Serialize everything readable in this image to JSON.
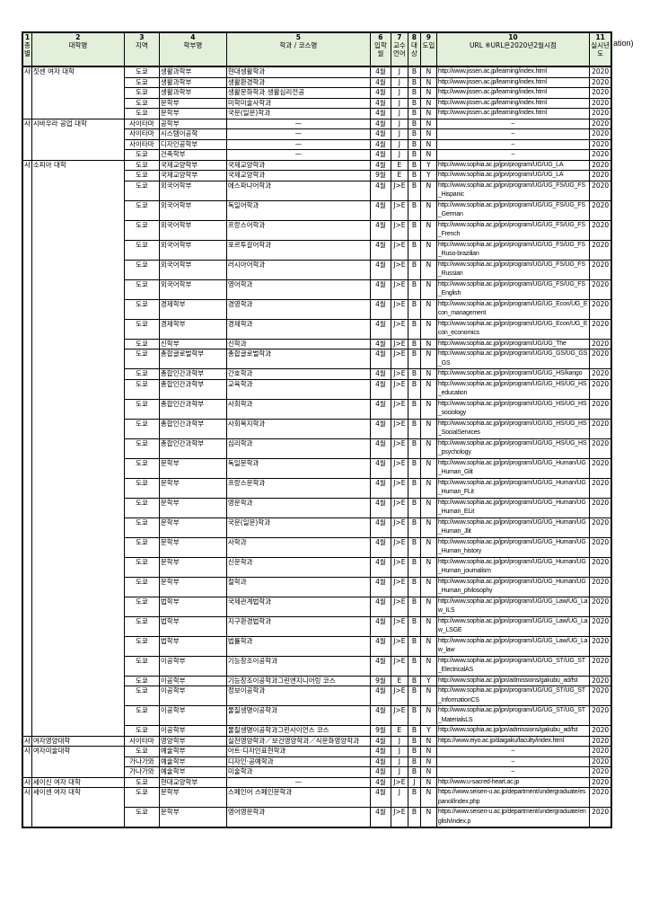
{
  "header": {
    "cols": [
      {
        "num": "1",
        "label": "종별"
      },
      {
        "num": "2",
        "label": "대학명"
      },
      {
        "num": "3",
        "label": "지역"
      },
      {
        "num": "4",
        "label": "학부명"
      },
      {
        "num": "5",
        "label": "학과 / 코스명"
      },
      {
        "num": "6",
        "label": "입학월"
      },
      {
        "num": "7",
        "label": "교수언어"
      },
      {
        "num": "8",
        "label": "대상"
      },
      {
        "num": "9",
        "label": "도입"
      },
      {
        "num": "10",
        "label": "URL ※URL은2020년2월시점"
      },
      {
        "num": "11",
        "label": "실시년도"
      }
    ],
    "overflow_text": "ation)"
  },
  "universities": [
    {
      "type": "사",
      "name": "짓센 여자 대학",
      "rows": [
        [
          "도쿄",
          "생활과학부",
          "현대생활학과",
          "4월",
          "J",
          "B",
          "N",
          "http://www.jissen.ac.jp/learning/index.html",
          "2020"
        ],
        [
          "도쿄",
          "생활과학부",
          "생활환경학과",
          "4월",
          "J",
          "B",
          "N",
          "http://www.jissen.ac.jp/learning/index.html",
          "2020"
        ],
        [
          "도쿄",
          "생활과학부",
          "생활문화학과 생활심리전공",
          "4월",
          "J",
          "B",
          "N",
          "http://www.jissen.ac.jp/learning/index.html",
          "2020"
        ],
        [
          "도쿄",
          "문학부",
          "미학미술사학과",
          "4월",
          "J",
          "B",
          "N",
          "http://www.jissen.ac.jp/learning/index.html",
          "2020"
        ],
        [
          "도쿄",
          "문학부",
          "국문(일문)학과",
          "4월",
          "J",
          "B",
          "N",
          "http://www.jissen.ac.jp/learning/index.html",
          "2020"
        ]
      ]
    },
    {
      "type": "사",
      "name": "시바우라 공업 대학",
      "rows": [
        [
          "사이타마",
          "공학부",
          "—",
          "4월",
          "J",
          "B",
          "N",
          "–",
          "2020"
        ],
        [
          "사이타마",
          "시스템이공학",
          "—",
          "4월",
          "J",
          "B",
          "N",
          "–",
          "2020"
        ],
        [
          "사이타마",
          "디자인공학부",
          "—",
          "4월",
          "J",
          "B",
          "N",
          "–",
          "2020"
        ],
        [
          "도쿄",
          "건축학부",
          "—",
          "4월",
          "J",
          "B",
          "N",
          "–",
          "2020"
        ]
      ]
    },
    {
      "type": "사",
      "name": "소피아 대학",
      "rows": [
        [
          "도쿄",
          "국제교양학부",
          "국제교양학과",
          "4월",
          "E",
          "B",
          "Y",
          "http://www.sophia.ac.jp/jpn/program/UG/UG_LA",
          "2020"
        ],
        [
          "도쿄",
          "국제교양학부",
          "국제교양학과",
          "9월",
          "E",
          "B",
          "Y",
          "http://www.sophia.ac.jp/jpn/program/UG/UG_LA",
          "2020"
        ],
        [
          "도쿄",
          "외국어학부",
          "에스파냐어학과",
          "4월",
          "J>E",
          "B",
          "N",
          "http://www.sophia.ac.jp/jpn/program/UG/UG_FS/UG_FS_Hispanic",
          "2020"
        ],
        [
          "도쿄",
          "외국어학부",
          "독일어학과",
          "4월",
          "J>E",
          "B",
          "N",
          "http://www.sophia.ac.jp/jpn/program/UG/UG_FS/UG_FS_German",
          "2020"
        ],
        [
          "도쿄",
          "외국어학부",
          "프랑스어학과",
          "4월",
          "J>E",
          "B",
          "N",
          "http://www.sophia.ac.jp/jpn/program/UG/UG_FS/UG_FS_French",
          "2020"
        ],
        [
          "도쿄",
          "외국어학부",
          "포르투갈어학과",
          "4월",
          "J>E",
          "B",
          "N",
          "http://www.sophia.ac.jp/jpn/program/UG/UG_FS/UG_FS_Ruso-brazilian",
          "2020"
        ],
        [
          "도쿄",
          "외국어학부",
          "러시아어학과",
          "4월",
          "J>E",
          "B",
          "N",
          "http://www.sophia.ac.jp/jpn/program/UG/UG_FS/UG_FS_Russian",
          "2020"
        ],
        [
          "도쿄",
          "외국어학부",
          "영어학과",
          "4월",
          "J>E",
          "B",
          "N",
          "http://www.sophia.ac.jp/jpn/program/UG/UG_FS/UG_FS_English",
          "2020"
        ],
        [
          "도쿄",
          "경제학부",
          "경영학과",
          "4월",
          "J>E",
          "B",
          "N",
          "http://www.sophia.ac.jp/jpn/program/UG/UG_Econ/UG_Econ_management",
          "2020"
        ],
        [
          "도쿄",
          "경제학부",
          "경제학과",
          "4월",
          "J>E",
          "B",
          "N",
          "http://www.sophia.ac.jp/jpn/program/UG/UG_Econ/UG_Econ_economics",
          "2020"
        ],
        [
          "도쿄",
          "신학부",
          "신학과",
          "4월",
          "J>E",
          "B",
          "N",
          "http://www.sophia.ac.jp/jpn/program/UG/UG_The",
          "2020"
        ],
        [
          "도쿄",
          "총합글로벌학부",
          "총합글로벌학과",
          "4월",
          "J>E",
          "B",
          "N",
          "http://www.sophia.ac.jp/jpn/program/UG/UG_GS/UG_GS_GS",
          "2020"
        ],
        [
          "도쿄",
          "총합인간과학부",
          "간호학과",
          "4월",
          "J>E",
          "B",
          "N",
          "http://www.sophia.ac.jp/jpn/program/UG/UG_HS/kango",
          "2020"
        ],
        [
          "도쿄",
          "총합인간과학부",
          "교육학과",
          "4월",
          "J>E",
          "B",
          "N",
          "http://www.sophia.ac.jp/jpn/program/UG/UG_HS/UG_HS_education",
          "2020"
        ],
        [
          "도쿄",
          "총합인간과학부",
          "사회학과",
          "4월",
          "J>E",
          "B",
          "N",
          "http://www.sophia.ac.jp/jpn/program/UG/UG_HS/UG_HS_sociology",
          "2020"
        ],
        [
          "도쿄",
          "총합인간과학부",
          "사회복지학과",
          "4월",
          "J>E",
          "B",
          "N",
          "http://www.sophia.ac.jp/jpn/program/UG/UG_HS/UG_HS_SocialServices",
          "2020"
        ],
        [
          "도쿄",
          "총합인간과학부",
          "심리학과",
          "4월",
          "J>E",
          "B",
          "N",
          "http://www.sophia.ac.jp/jpn/program/UG/UG_HS/UG_HS_psychology",
          "2020"
        ],
        [
          "도쿄",
          "문학부",
          "독일문학과",
          "4월",
          "J>E",
          "B",
          "N",
          "http://www.sophia.ac.jp/jpn/program/UG/UG_Human/UG_Human_Glit",
          "2020"
        ],
        [
          "도쿄",
          "문학부",
          "프랑스문학과",
          "4월",
          "J>E",
          "B",
          "N",
          "http://www.sophia.ac.jp/jpn/program/UG/UG_Human/UG_Human_FLit",
          "2020"
        ],
        [
          "도쿄",
          "문학부",
          "영문학과",
          "4월",
          "J>E",
          "B",
          "N",
          "http://www.sophia.ac.jp/jpn/program/UG/UG_Human/UG_Human_ELit",
          "2020"
        ],
        [
          "도쿄",
          "문학부",
          "국문(일문)학과",
          "4월",
          "J>E",
          "B",
          "N",
          "http://www.sophia.ac.jp/jpn/program/UG/UG_Human/UG_Human_Jlit",
          "2020"
        ],
        [
          "도쿄",
          "문학부",
          "사학과",
          "4월",
          "J>E",
          "B",
          "N",
          "http://www.sophia.ac.jp/jpn/program/UG/UG_Human/UG_Human_history",
          "2020"
        ],
        [
          "도쿄",
          "문학부",
          "신문학과",
          "4월",
          "J>E",
          "B",
          "N",
          "http://www.sophia.ac.jp/jpn/program/UG/UG_Human/UG_Human_journalism",
          "2020"
        ],
        [
          "도쿄",
          "문학부",
          "철학과",
          "4월",
          "J>E",
          "B",
          "N",
          "http://www.sophia.ac.jp/jpn/program/UG/UG_Human/UG_Human_philosophy",
          "2020"
        ],
        [
          "도쿄",
          "법학부",
          "국제관계법학과",
          "4월",
          "J>E",
          "B",
          "N",
          "http://www.sophia.ac.jp/jpn/program/UG/UG_Law/UG_Law_ILS",
          "2020"
        ],
        [
          "도쿄",
          "법학부",
          "지구환경법학과",
          "4월",
          "J>E",
          "B",
          "N",
          "http://www.sophia.ac.jp/jpn/program/UG/UG_Law/UG_Law_LSGE",
          "2020"
        ],
        [
          "도쿄",
          "법학부",
          "법률학과",
          "4월",
          "J>E",
          "B",
          "N",
          "http://www.sophia.ac.jp/jpn/program/UG/UG_Law/UG_Law_law",
          "2020"
        ],
        [
          "도쿄",
          "이공학부",
          "기능창조이공학과",
          "4월",
          "J>E",
          "B",
          "N",
          "http://www.sophia.ac.jp/jpn/program/UG/UG_ST/UG_ST_ElectricalAS",
          "2020"
        ],
        [
          "도쿄",
          "이공학부",
          "기능창조이공학과그린엔지니어링 코스",
          "9월",
          "E",
          "B",
          "Y",
          "http://www.sophia.ac.jp/jpn/admissions/gakubu_ad/fst",
          "2020"
        ],
        [
          "도쿄",
          "이공학부",
          "정보이공학과",
          "4월",
          "J>E",
          "B",
          "N",
          "http://www.sophia.ac.jp/jpn/program/UG/UG_ST/UG_ST_InformationCS",
          "2020"
        ],
        [
          "도쿄",
          "이공학부",
          "물질생명이공학과",
          "4월",
          "J>E",
          "B",
          "N",
          "http://www.sophia.ac.jp/jpn/program/UG/UG_ST/UG_ST_MaterialsLS",
          "2020"
        ],
        [
          "도쿄",
          "이공학부",
          "물질생명이공학과그린사이언스 코스",
          "9월",
          "E",
          "B",
          "Y",
          "http://www.sophia.ac.jp/jpn/admissions/gakubu_ad/fst",
          "2020"
        ]
      ]
    },
    {
      "type": "사",
      "name": "여자영양대학",
      "rows": [
        [
          "사이타마",
          "영양학부",
          "실천영양학과／보건영양학과／식문화영양학과",
          "4월",
          "J",
          "B",
          "N",
          "https://www.eiyo.ac.jp/daigaku/faculty/index.html",
          "2020"
        ]
      ]
    },
    {
      "type": "사",
      "name": "여자미술대학",
      "rows": [
        [
          "도쿄",
          "예술학부",
          "아트·디자인표현학과",
          "4월",
          "J",
          "B",
          "N",
          "–",
          "2020"
        ],
        [
          "가나가와",
          "예술학부",
          "디자인·공예학과",
          "4월",
          "J",
          "B",
          "N",
          "–",
          "2020"
        ],
        [
          "가나가와",
          "예술학부",
          "미술학과",
          "4월",
          "J",
          "B",
          "N",
          "–",
          "2020"
        ]
      ]
    },
    {
      "type": "사",
      "name": "세이신 여자 대학",
      "rows": [
        [
          "도쿄",
          "현대교양학부",
          "—",
          "4월",
          "J>E",
          "J",
          "N",
          "http://www.u-sacred-heart.ac.jp",
          "2020"
        ]
      ]
    },
    {
      "type": "사",
      "name": "세이센 여자 대학",
      "rows": [
        [
          "도쿄",
          "문학부",
          "스페인어 스페인문학과",
          "4월",
          "J",
          "B",
          "N",
          "https://www.seisen-u.ac.jp/department/undergraduate/espanol/index.php",
          "2020"
        ],
        [
          "도쿄",
          "문학부",
          "영어영문학과",
          "4월",
          "J>E",
          "B",
          "N",
          "https://www.seisen-u.ac.jp/department/undergraduate/english/index.p",
          "2020"
        ]
      ]
    }
  ]
}
